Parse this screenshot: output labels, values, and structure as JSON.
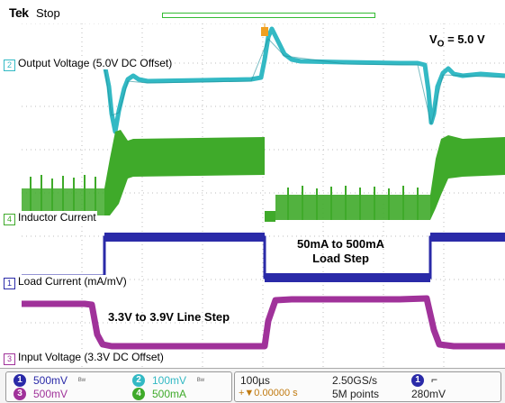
{
  "header": {
    "brand": "Tek",
    "run_state": "Stop"
  },
  "channels": [
    {
      "num": "1",
      "label": "Load Current (mA/mV)",
      "color": "#2a2aa8"
    },
    {
      "num": "2",
      "label": "Output Voltage (5.0V DC Offset)",
      "color": "#33b9c4"
    },
    {
      "num": "3",
      "label": "Input Voltage (3.3V DC Offset)",
      "color": "#a0329a"
    },
    {
      "num": "4",
      "label": "Inductor Current",
      "color": "#3faa2a"
    }
  ],
  "annotations": {
    "vo_prefix": "V",
    "vo_sub": "O",
    "vo_value": " = 5.0 V",
    "load_line1": "50mA to 500mA",
    "load_line2": "Load Step",
    "line_step": "3.3V to 3.9V Line Step"
  },
  "status": {
    "ch1_scale": "500mV",
    "ch2_scale": "100mV",
    "ch3_scale": "500mV",
    "ch4_scale": "500mA",
    "timebase": "100µs",
    "trigger_pos": "+▼0.00000 s",
    "sample_rate": "2.50GS/s",
    "record_length": "5M points",
    "trigger_channel": "1",
    "trigger_slope": "⌐",
    "trigger_level": "280mV"
  },
  "colors": {
    "ch1": "#2a2aa8",
    "ch2": "#33b9c4",
    "ch3": "#a0329a",
    "ch4": "#3faa2a",
    "trigger": "#f0a020"
  }
}
